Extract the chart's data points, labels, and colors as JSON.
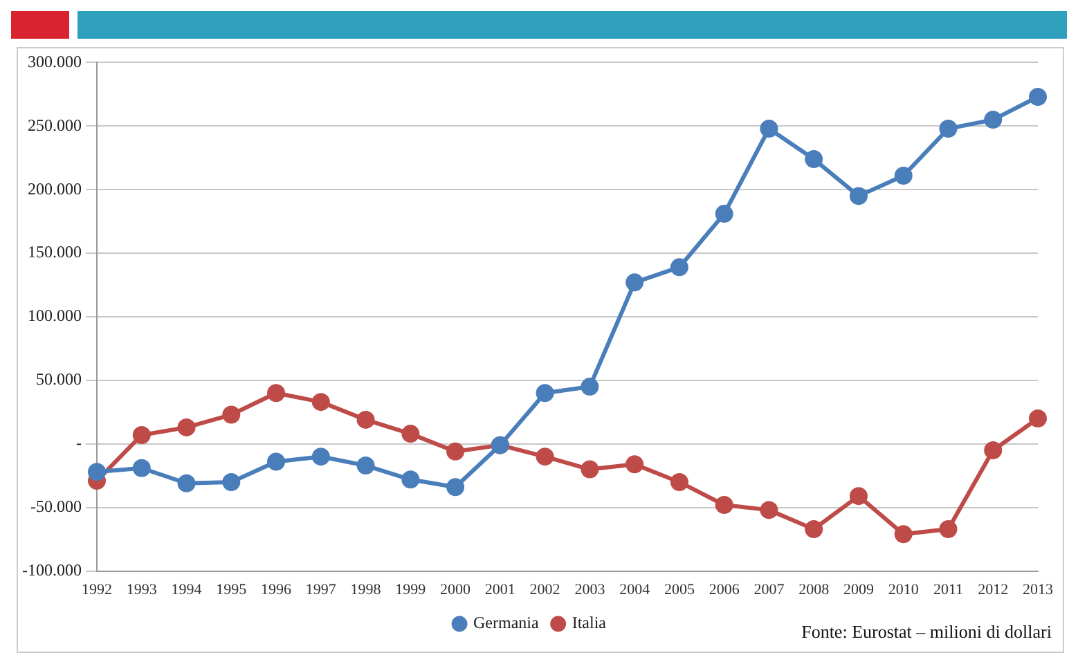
{
  "chart_data": {
    "type": "line",
    "categories": [
      "1992",
      "1993",
      "1994",
      "1995",
      "1996",
      "1997",
      "1998",
      "1999",
      "2000",
      "2001",
      "2002",
      "2003",
      "2004",
      "2005",
      "2006",
      "2007",
      "2008",
      "2009",
      "2010",
      "2011",
      "2012",
      "2013"
    ],
    "series": [
      {
        "name": "Germania",
        "color": "#4a7ebb",
        "values": [
          -22,
          -19,
          -31,
          -30,
          -14,
          -10,
          -17,
          -28,
          -34,
          -1,
          40,
          45,
          127,
          139,
          181,
          248,
          224,
          195,
          211,
          248,
          255,
          273
        ]
      },
      {
        "name": "Italia",
        "color": "#be4b48",
        "values": [
          -29,
          7,
          13,
          23,
          40,
          33,
          19,
          8,
          -6,
          -1,
          -10,
          -20,
          -16,
          -30,
          -48,
          -52,
          -67,
          -41,
          -71,
          -67,
          -5,
          20
        ]
      }
    ],
    "ylim": [
      -100,
      300
    ],
    "yticks": [
      {
        "value": -100,
        "label": "-100.000"
      },
      {
        "value": -50,
        "label": "-50.000"
      },
      {
        "value": 0,
        "label": "-"
      },
      {
        "value": 50,
        "label": "50.000"
      },
      {
        "value": 100,
        "label": "100.000"
      },
      {
        "value": 150,
        "label": "150.000"
      },
      {
        "value": 200,
        "label": "200.000"
      },
      {
        "value": 250,
        "label": "250.000"
      },
      {
        "value": 300,
        "label": "300.000"
      }
    ],
    "grid": "y",
    "legend": "bottom",
    "marker": "circle",
    "line_style": "solid",
    "annotations": [
      "Fonte: Eurostat – milioni di dollari"
    ]
  }
}
